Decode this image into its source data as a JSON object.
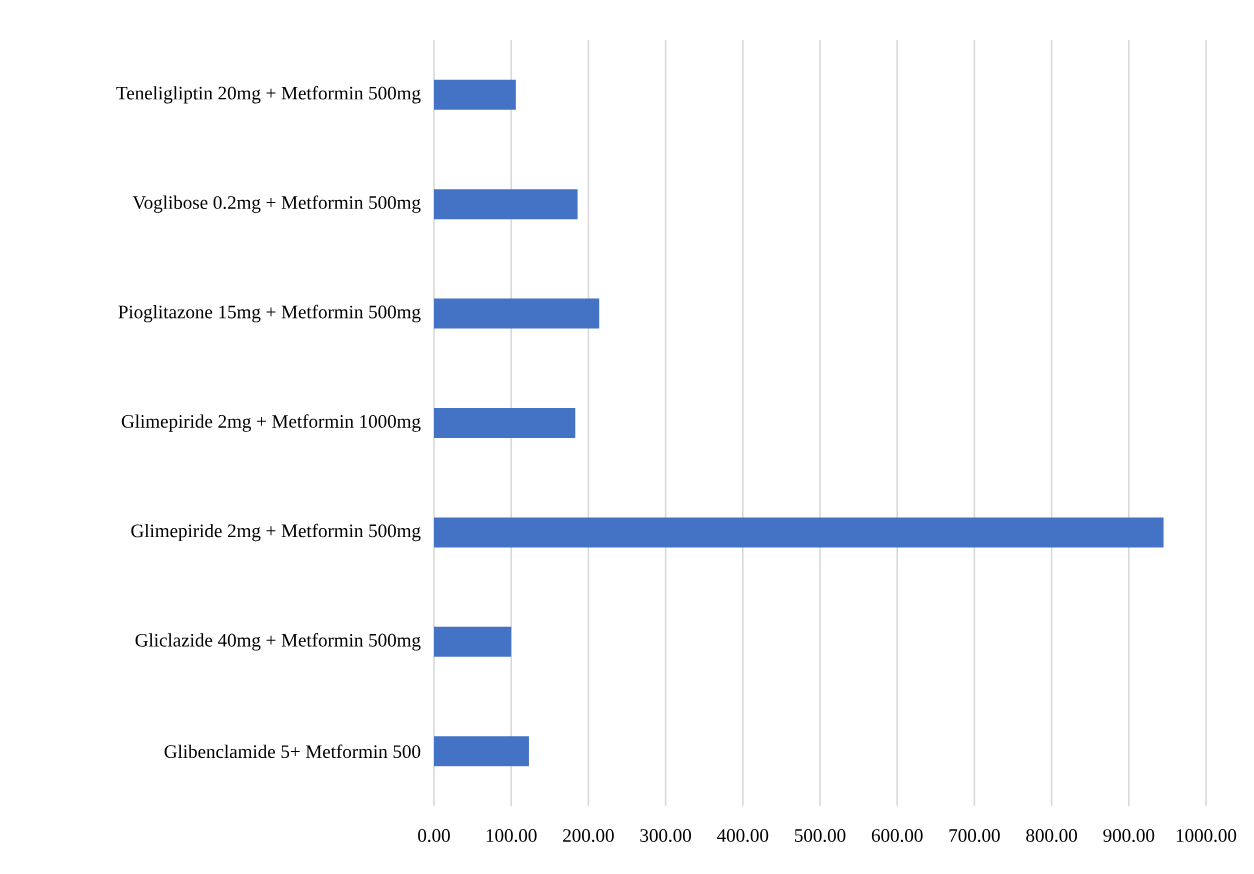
{
  "chart_data": {
    "type": "bar",
    "orientation": "horizontal",
    "categories": [
      "Teneligliptin 20mg + Metformin 500mg",
      "Voglibose 0.2mg + Metformin 500mg",
      "Pioglitazone 15mg + Metformin 500mg",
      "Glimepiride 2mg + Metformin 1000mg",
      "Glimepiride 2mg + Metformin 500mg",
      "Gliclazide 40mg + Metformin 500mg",
      "Glibenclamide 5+ Metformin 500"
    ],
    "values": [
      106,
      186,
      214,
      183,
      945,
      100,
      123
    ],
    "color": "#4472c4",
    "xlim": [
      0,
      1000
    ],
    "xticks": [
      {
        "value": 0,
        "label": "0.00"
      },
      {
        "value": 100,
        "label": "100.00"
      },
      {
        "value": 200,
        "label": "200.00"
      },
      {
        "value": 300,
        "label": "300.00"
      },
      {
        "value": 400,
        "label": "400.00"
      },
      {
        "value": 500,
        "label": "500.00"
      },
      {
        "value": 600,
        "label": "600.00"
      },
      {
        "value": 700,
        "label": "700.00"
      },
      {
        "value": 800,
        "label": "800.00"
      },
      {
        "value": 900,
        "label": "900.00"
      },
      {
        "value": 1000,
        "label": "1000.00"
      }
    ],
    "grid": "x"
  }
}
